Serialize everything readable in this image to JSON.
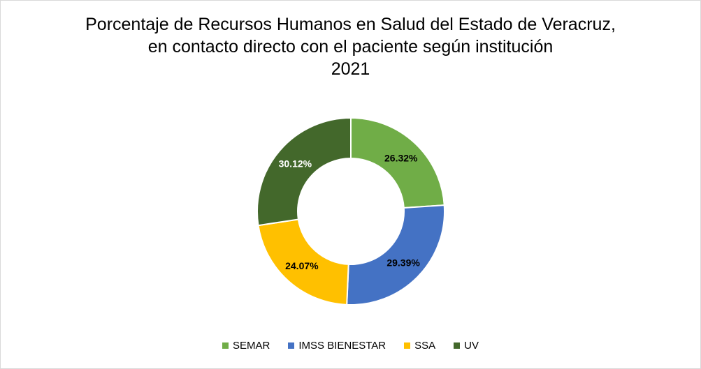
{
  "chart_data": {
    "type": "pie",
    "variant": "donut",
    "title_lines": [
      "Porcentaje de Recursos Humanos en Salud del Estado de Veracruz,",
      "en contacto directo con el paciente según institución",
      "2021"
    ],
    "legend_position": "bottom",
    "slices": [
      {
        "label": "SEMAR",
        "value": 26.32,
        "display": "26.32%",
        "color": "#70ad47",
        "label_color": "#000000"
      },
      {
        "label": "IMSS BIENESTAR",
        "value": 29.39,
        "display": "29.39%",
        "color": "#4472c4",
        "label_color": "#000000"
      },
      {
        "label": "SSA",
        "value": 24.07,
        "display": "24.07%",
        "color": "#ffc000",
        "label_color": "#000000"
      },
      {
        "label": "UV",
        "value": 30.12,
        "display": "30.12%",
        "color": "#43682b",
        "label_color": "#ffffff"
      }
    ]
  }
}
